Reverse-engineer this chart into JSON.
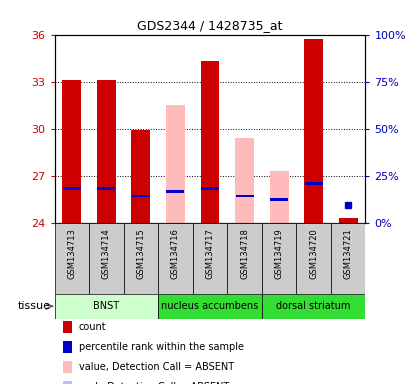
{
  "title": "GDS2344 / 1428735_at",
  "samples": [
    "GSM134713",
    "GSM134714",
    "GSM134715",
    "GSM134716",
    "GSM134717",
    "GSM134718",
    "GSM134719",
    "GSM134720",
    "GSM134721"
  ],
  "bar_bottom": 24,
  "red_values": [
    33.1,
    33.1,
    29.9,
    null,
    34.3,
    null,
    null,
    35.7,
    24.3
  ],
  "pink_values": [
    null,
    null,
    null,
    31.5,
    null,
    29.4,
    27.3,
    null,
    null
  ],
  "blue_marker": [
    26.2,
    26.2,
    25.7,
    26.0,
    26.2,
    25.7,
    25.5,
    26.5,
    25.1
  ],
  "blue_is_square": [
    false,
    false,
    false,
    false,
    false,
    false,
    false,
    false,
    true
  ],
  "light_blue_marker": [
    null,
    null,
    null,
    26.0,
    null,
    25.7,
    25.5,
    null,
    null
  ],
  "ylim": [
    24,
    36
  ],
  "yticks_left": [
    24,
    27,
    30,
    33,
    36
  ],
  "yticks_right": [
    0,
    25,
    50,
    75,
    100
  ],
  "tissue_groups": [
    {
      "label": "BNST",
      "start": 0,
      "end": 3,
      "color": "#ccffcc"
    },
    {
      "label": "nucleus accumbens",
      "start": 3,
      "end": 6,
      "color": "#33dd33"
    },
    {
      "label": "dorsal striatum",
      "start": 6,
      "end": 9,
      "color": "#33dd33"
    }
  ],
  "tissue_label": "tissue",
  "legend_items": [
    {
      "color": "#cc0000",
      "label": "count"
    },
    {
      "color": "#0000cc",
      "label": "percentile rank within the sample"
    },
    {
      "color": "#ffbbbb",
      "label": "value, Detection Call = ABSENT"
    },
    {
      "color": "#bbbbff",
      "label": "rank, Detection Call = ABSENT"
    }
  ],
  "bar_width": 0.55,
  "red_color": "#cc0000",
  "pink_color": "#ffbbbb",
  "blue_color": "#0000cc",
  "light_blue_color": "#bbbbff",
  "bg_color": "#ffffff",
  "grid_color": "#000000",
  "tick_color_left": "#cc0000",
  "tick_color_right": "#0000bb",
  "sample_box_color": "#cccccc",
  "spine_color": "#000000"
}
